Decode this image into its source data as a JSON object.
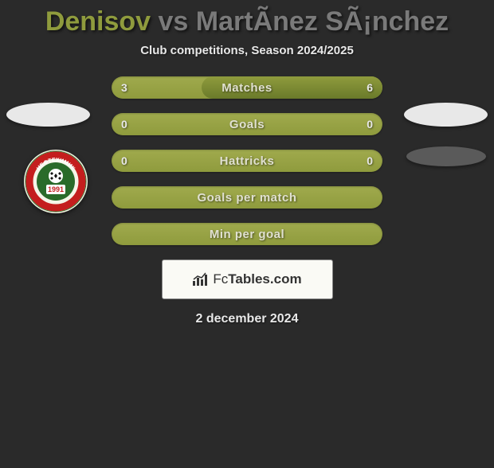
{
  "title": {
    "player1": "Denisov",
    "connector": " vs ",
    "player2": "MartÃ­nez SÃ¡nchez",
    "color1": "#8f9b3d",
    "color2": "#7a7a7a",
    "connector_color": "#7a7a7a"
  },
  "subtitle": "Club competitions, Season 2024/2025",
  "bars": [
    {
      "label": "Matches",
      "left": "3",
      "right": "6",
      "left_val": 3,
      "right_val": 6,
      "max": 9,
      "show_values": true
    },
    {
      "label": "Goals",
      "left": "0",
      "right": "0",
      "left_val": 0,
      "right_val": 0,
      "max": 1,
      "show_values": true
    },
    {
      "label": "Hattricks",
      "left": "0",
      "right": "0",
      "left_val": 0,
      "right_val": 0,
      "max": 1,
      "show_values": true
    },
    {
      "label": "Goals per match",
      "left": "",
      "right": "",
      "left_val": 0,
      "right_val": 0,
      "max": 1,
      "show_values": false
    },
    {
      "label": "Min per goal",
      "left": "",
      "right": "",
      "left_val": 0,
      "right_val": 0,
      "max": 1,
      "show_values": false
    }
  ],
  "colors": {
    "bar_base": "#8f9b3d",
    "bar_base_light": "#a0aa4d",
    "overlay": "#6a7a2a",
    "background": "#2a2a2a",
    "text_light": "#e0e0d0"
  },
  "footer": {
    "brand_prefix": "Fc",
    "brand_suffix": "Tables.com",
    "date": "2 december 2024"
  },
  "badge": {
    "year": "1991",
    "top_text": "НЕФТЕХИМИК"
  }
}
